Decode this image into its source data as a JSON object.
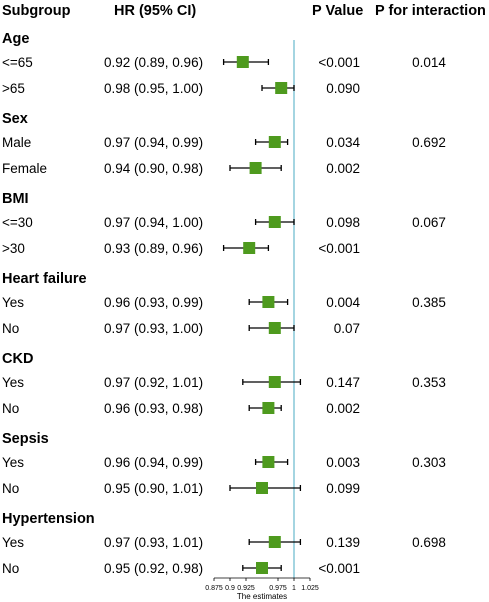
{
  "headers": {
    "subgroup": "Subgroup",
    "hr": "HR (95% CI)",
    "p_value": "P Value",
    "p_interaction": "P for interaction"
  },
  "colors": {
    "marker": "#4e9a1e",
    "reference_line": "#7ec3d4",
    "whisker": "#000000"
  },
  "chart_data": {
    "type": "forest",
    "reference_value": 1,
    "xlim": [
      0.875,
      1.025
    ],
    "x_ticks": [
      0.875,
      0.9,
      0.925,
      0.975,
      1,
      1.025
    ],
    "x_tick_labels": [
      "0.875",
      "0.9",
      "0.925",
      "0.975",
      "1",
      "1.025"
    ],
    "xlabel": "The estimates",
    "groups": [
      {
        "name": "Age",
        "p_interaction": "0.014",
        "rows": [
          {
            "label": "<=65",
            "hr": 0.92,
            "lo": 0.89,
            "hi": 0.96,
            "ci_text": "0.92 (0.89, 0.96)",
            "p": "<0.001"
          },
          {
            "label": ">65",
            "hr": 0.98,
            "lo": 0.95,
            "hi": 1.0,
            "ci_text": "0.98 (0.95, 1.00)",
            "p": "0.090"
          }
        ]
      },
      {
        "name": "Sex",
        "p_interaction": "0.692",
        "rows": [
          {
            "label": "Male",
            "hr": 0.97,
            "lo": 0.94,
            "hi": 0.99,
            "ci_text": "0.97 (0.94, 0.99)",
            "p": "0.034"
          },
          {
            "label": "Female",
            "hr": 0.94,
            "lo": 0.9,
            "hi": 0.98,
            "ci_text": "0.94 (0.90, 0.98)",
            "p": "0.002"
          }
        ]
      },
      {
        "name": "BMI",
        "p_interaction": "0.067",
        "rows": [
          {
            "label": "<=30",
            "hr": 0.97,
            "lo": 0.94,
            "hi": 1.0,
            "ci_text": "0.97 (0.94, 1.00)",
            "p": "0.098"
          },
          {
            "label": ">30",
            "hr": 0.93,
            "lo": 0.89,
            "hi": 0.96,
            "ci_text": "0.93 (0.89, 0.96)",
            "p": "<0.001"
          }
        ]
      },
      {
        "name": "Heart failure",
        "p_interaction": "0.385",
        "rows": [
          {
            "label": "Yes",
            "hr": 0.96,
            "lo": 0.93,
            "hi": 0.99,
            "ci_text": "0.96 (0.93, 0.99)",
            "p": "0.004"
          },
          {
            "label": "No",
            "hr": 0.97,
            "lo": 0.93,
            "hi": 1.0,
            "ci_text": "0.97 (0.93, 1.00)",
            "p": "0.07"
          }
        ]
      },
      {
        "name": "CKD",
        "p_interaction": "0.353",
        "rows": [
          {
            "label": "Yes",
            "hr": 0.97,
            "lo": 0.92,
            "hi": 1.01,
            "ci_text": "0.97 (0.92, 1.01)",
            "p": "0.147"
          },
          {
            "label": "No",
            "hr": 0.96,
            "lo": 0.93,
            "hi": 0.98,
            "ci_text": "0.96 (0.93, 0.98)",
            "p": "0.002"
          }
        ]
      },
      {
        "name": "Sepsis",
        "p_interaction": "0.303",
        "rows": [
          {
            "label": "Yes",
            "hr": 0.96,
            "lo": 0.94,
            "hi": 0.99,
            "ci_text": "0.96 (0.94, 0.99)",
            "p": "0.003"
          },
          {
            "label": "No",
            "hr": 0.95,
            "lo": 0.9,
            "hi": 1.01,
            "ci_text": "0.95 (0.90, 1.01)",
            "p": "0.099"
          }
        ]
      },
      {
        "name": "Hypertension",
        "p_interaction": "0.698",
        "rows": [
          {
            "label": "Yes",
            "hr": 0.97,
            "lo": 0.93,
            "hi": 1.01,
            "ci_text": "0.97 (0.93, 1.01)",
            "p": "0.139"
          },
          {
            "label": "No",
            "hr": 0.95,
            "lo": 0.92,
            "hi": 0.98,
            "ci_text": "0.95 (0.92, 0.98)",
            "p": "<0.001"
          }
        ]
      }
    ]
  }
}
